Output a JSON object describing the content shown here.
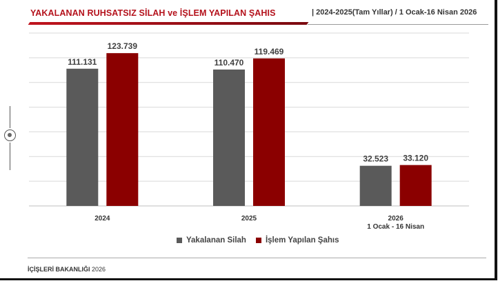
{
  "header": {
    "title": "YAKALANAN RUHSATSIZ SİLAH ve İŞLEM YAPILAN ŞAHIS",
    "subtitle": "|  2024-2025(Tam Yıllar) / 1 Ocak-16 Nisan 2026"
  },
  "footer": {
    "org": "İÇİŞLERİ BAKANLIĞI",
    "year": "2026"
  },
  "colors": {
    "silah": "#5a5a5a",
    "sahis": "#8b0000",
    "grid": "#d9d9d9",
    "title": "#b4111b"
  },
  "chart_data": {
    "type": "bar",
    "categories": [
      "2024",
      "2025",
      "2026"
    ],
    "category_sublabels": [
      "",
      "",
      "1 Ocak - 16 Nisan"
    ],
    "series": [
      {
        "name": "Yakalanan Silah",
        "values": [
          111131,
          110470,
          32523
        ],
        "labels": [
          "111.131",
          "110.470",
          "32.523"
        ],
        "color": "#5a5a5a"
      },
      {
        "name": "İşlem Yapılan Şahıs",
        "values": [
          123739,
          119469,
          33120
        ],
        "labels": [
          "123.739",
          "119.469",
          "33.120"
        ],
        "color": "#8b0000"
      }
    ],
    "ylim": [
      0,
      140000
    ],
    "grid": true,
    "legend_position": "bottom-center"
  }
}
